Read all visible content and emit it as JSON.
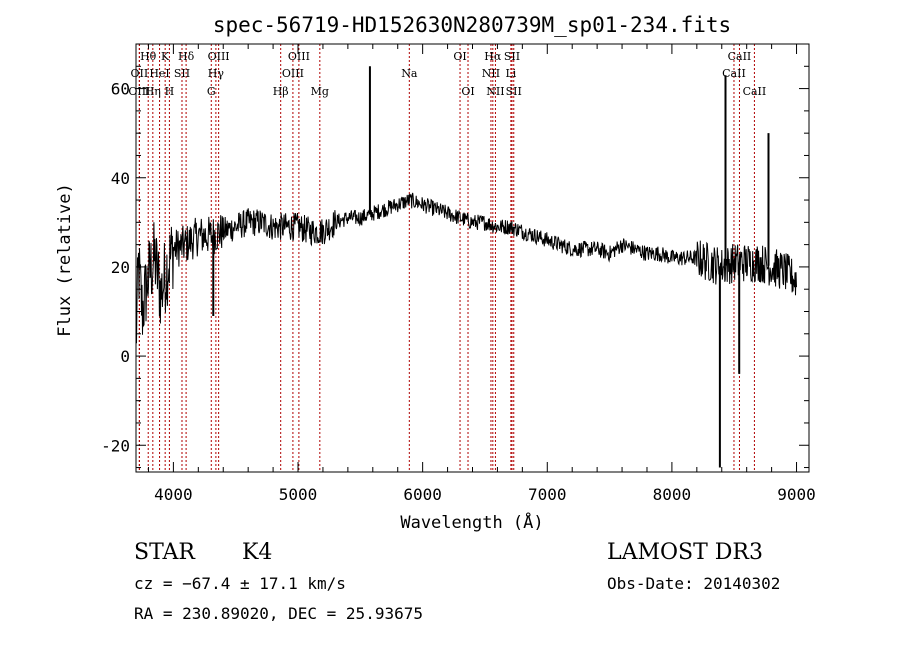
{
  "chart_data": {
    "type": "line",
    "title": "spec-56719-HD152630N280739M_sp01-234.fits",
    "xlabel": "Wavelength (Å)",
    "ylabel": "Flux (relative)",
    "xlim": [
      3700,
      9100
    ],
    "ylim": [
      -26,
      70
    ],
    "xticks": [
      4000,
      5000,
      6000,
      7000,
      8000,
      9000
    ],
    "yticks": [
      -20,
      0,
      20,
      40,
      60
    ],
    "spectrum_anchor_points": [
      [
        3700,
        3
      ],
      [
        3720,
        20
      ],
      [
        3750,
        10
      ],
      [
        3800,
        18
      ],
      [
        3850,
        22
      ],
      [
        3900,
        14
      ],
      [
        3950,
        20
      ],
      [
        4000,
        24
      ],
      [
        4100,
        25
      ],
      [
        4200,
        27
      ],
      [
        4300,
        27
      ],
      [
        4400,
        28
      ],
      [
        4500,
        29
      ],
      [
        4600,
        30
      ],
      [
        4700,
        30
      ],
      [
        4800,
        29
      ],
      [
        4900,
        29
      ],
      [
        5000,
        29
      ],
      [
        5100,
        28
      ],
      [
        5200,
        28
      ],
      [
        5300,
        30
      ],
      [
        5400,
        31
      ],
      [
        5500,
        31
      ],
      [
        5600,
        32
      ],
      [
        5700,
        33
      ],
      [
        5800,
        34
      ],
      [
        5900,
        35
      ],
      [
        6000,
        34
      ],
      [
        6100,
        33
      ],
      [
        6200,
        32
      ],
      [
        6300,
        31
      ],
      [
        6400,
        30
      ],
      [
        6500,
        30
      ],
      [
        6600,
        29
      ],
      [
        6700,
        29
      ],
      [
        6800,
        28
      ],
      [
        6900,
        27
      ],
      [
        7000,
        26
      ],
      [
        7100,
        25
      ],
      [
        7200,
        24
      ],
      [
        7300,
        24
      ],
      [
        7400,
        24
      ],
      [
        7500,
        23
      ],
      [
        7600,
        25
      ],
      [
        7700,
        24
      ],
      [
        7800,
        23
      ],
      [
        7900,
        23
      ],
      [
        8000,
        22
      ],
      [
        8100,
        22
      ],
      [
        8200,
        22
      ],
      [
        8300,
        21
      ],
      [
        8400,
        20
      ],
      [
        8500,
        21
      ],
      [
        8600,
        21
      ],
      [
        8700,
        21
      ],
      [
        8800,
        20
      ],
      [
        8900,
        19
      ],
      [
        9000,
        17
      ]
    ],
    "spikes": [
      {
        "x": 5577,
        "y": 65
      },
      {
        "x": 8430,
        "y": 63
      },
      {
        "x": 8385,
        "y": -25
      },
      {
        "x": 8775,
        "y": 50
      },
      {
        "x": 8540,
        "y": -4
      },
      {
        "x": 4320,
        "y": 9
      }
    ],
    "lines": [
      {
        "label": "Hθ",
        "x": 3798,
        "row": 0
      },
      {
        "label": "OII",
        "x": 3727,
        "row": 1
      },
      {
        "label": "OIII",
        "x": 3727,
        "row": 2
      },
      {
        "label": "Hη",
        "x": 3835,
        "row": 2
      },
      {
        "label": "K",
        "x": 3934,
        "row": 0
      },
      {
        "label": "HeI",
        "x": 3889,
        "row": 1
      },
      {
        "label": "SII",
        "x": 4069,
        "row": 1
      },
      {
        "label": "H",
        "x": 3968,
        "row": 2
      },
      {
        "label": "Hδ",
        "x": 4102,
        "row": 0
      },
      {
        "label": "OIII",
        "x": 4363,
        "row": 0
      },
      {
        "label": "Hγ",
        "x": 4341,
        "row": 1
      },
      {
        "label": "G",
        "x": 4304,
        "row": 2
      },
      {
        "label": "OIII",
        "x": 5007,
        "row": 0
      },
      {
        "label": "OIII",
        "x": 4959,
        "row": 1
      },
      {
        "label": "Hβ",
        "x": 4861,
        "row": 2
      },
      {
        "label": "Mg",
        "x": 5175,
        "row": 2
      },
      {
        "label": "Na",
        "x": 5893,
        "row": 1
      },
      {
        "label": "OI",
        "x": 6300,
        "row": 0
      },
      {
        "label": "OI",
        "x": 6364,
        "row": 2
      },
      {
        "label": "Hα",
        "x": 6563,
        "row": 0
      },
      {
        "label": "SII",
        "x": 6717,
        "row": 0
      },
      {
        "label": "NII",
        "x": 6548,
        "row": 1
      },
      {
        "label": "Li",
        "x": 6708,
        "row": 1
      },
      {
        "label": "NII",
        "x": 6584,
        "row": 2
      },
      {
        "label": "SII",
        "x": 6731,
        "row": 2
      },
      {
        "label": "CaII",
        "x": 8542,
        "row": 0
      },
      {
        "label": "CaII",
        "x": 8498,
        "row": 1
      },
      {
        "label": "CaII",
        "x": 8662,
        "row": 2
      }
    ]
  },
  "info": {
    "class": "STAR",
    "subclass": "K4",
    "cz": "cz = −67.4 ± 17.1 km/s",
    "radec": "RA = 230.89020, DEC =  25.93675",
    "survey": "LAMOST DR3",
    "obsdate": "Obs-Date: 20140302"
  }
}
